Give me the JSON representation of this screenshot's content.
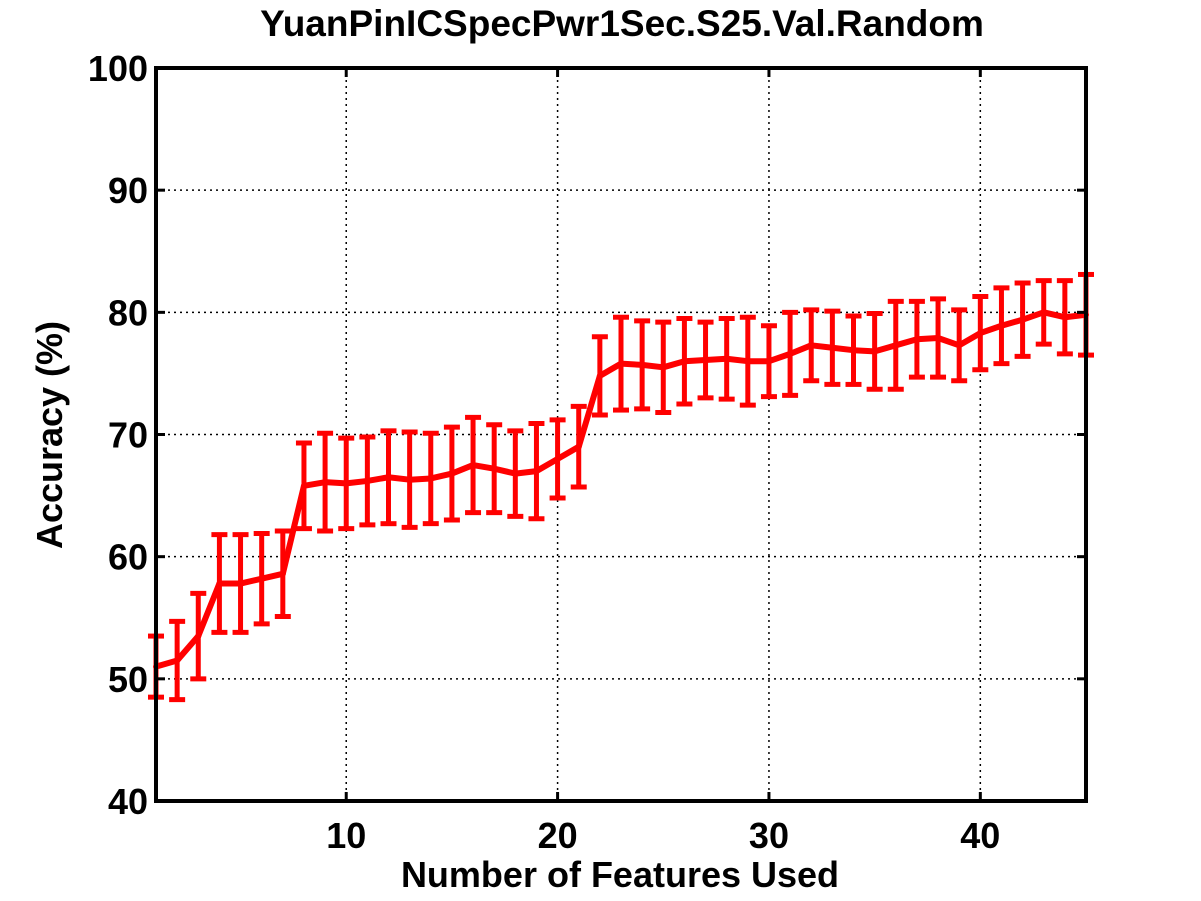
{
  "chart_data": {
    "type": "line",
    "title": "YuanPinICSpecPwr1Sec.S25.Val.Random",
    "xlabel": "Number of Features Used",
    "ylabel": "Accuracy (%)",
    "xlim": [
      1,
      45
    ],
    "ylim": [
      40,
      100
    ],
    "xticks": [
      10,
      20,
      30,
      40
    ],
    "yticks": [
      40,
      50,
      60,
      70,
      80,
      90,
      100
    ],
    "grid": true,
    "color": "#ff0000",
    "series": [
      {
        "x": [
          1,
          2,
          3,
          4,
          5,
          6,
          7,
          8,
          9,
          10,
          11,
          12,
          13,
          14,
          15,
          16,
          17,
          18,
          19,
          20,
          21,
          22,
          23,
          24,
          25,
          26,
          27,
          28,
          29,
          30,
          31,
          32,
          33,
          34,
          35,
          36,
          37,
          38,
          39,
          40,
          41,
          42,
          43,
          44,
          45
        ],
        "values": [
          51.0,
          51.5,
          53.5,
          57.8,
          57.8,
          58.2,
          58.6,
          65.8,
          66.1,
          66.0,
          66.2,
          66.5,
          66.3,
          66.4,
          66.8,
          67.5,
          67.2,
          66.8,
          67.0,
          68.0,
          69.0,
          74.8,
          75.8,
          75.7,
          75.5,
          76.0,
          76.1,
          76.2,
          76.0,
          76.0,
          76.6,
          77.3,
          77.1,
          76.9,
          76.8,
          77.3,
          77.8,
          77.9,
          77.3,
          78.3,
          78.9,
          79.4,
          80.0,
          79.6,
          79.8
        ],
        "error": [
          2.5,
          3.2,
          3.5,
          4.0,
          4.0,
          3.7,
          3.5,
          3.5,
          4.0,
          3.7,
          3.6,
          3.8,
          3.9,
          3.7,
          3.8,
          3.9,
          3.6,
          3.5,
          3.9,
          3.2,
          3.3,
          3.2,
          3.8,
          3.6,
          3.7,
          3.5,
          3.1,
          3.3,
          3.6,
          2.9,
          3.4,
          2.9,
          3.0,
          2.8,
          3.1,
          3.6,
          3.1,
          3.2,
          2.9,
          3.0,
          3.1,
          3.0,
          2.6,
          3.0,
          3.3
        ]
      }
    ]
  }
}
